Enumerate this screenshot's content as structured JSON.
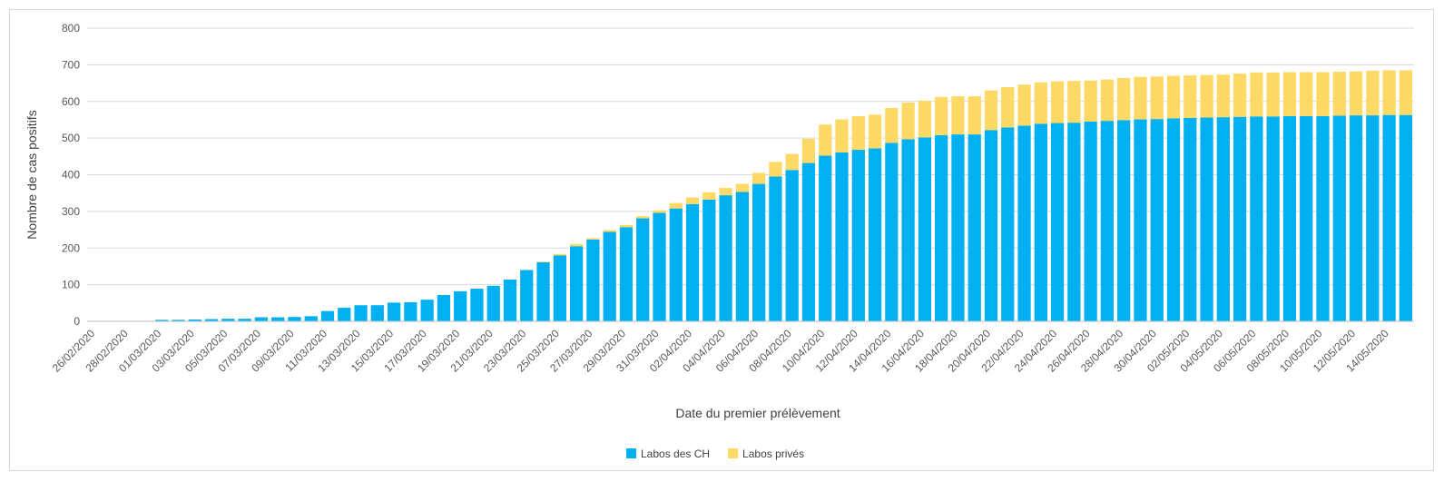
{
  "chart_data": {
    "type": "bar",
    "stacked": true,
    "title": "",
    "xlabel": "Date du premier prélèvement",
    "ylabel": "Nombre de cas positifs",
    "ylim": [
      0,
      800
    ],
    "yticks": [
      0,
      100,
      200,
      300,
      400,
      500,
      600,
      700,
      800
    ],
    "grid": true,
    "legend_position": "bottom-center",
    "tick_labels": [
      "26/02/2020",
      "28/02/2020",
      "01/03/2020",
      "03/03/2020",
      "05/03/2020",
      "07/03/2020",
      "09/03/2020",
      "11/03/2020",
      "13/03/2020",
      "15/03/2020",
      "17/03/2020",
      "19/03/2020",
      "21/03/2020",
      "23/03/2020",
      "25/03/2020",
      "27/03/2020",
      "29/03/2020",
      "31/03/2020",
      "02/04/2020",
      "04/04/2020",
      "06/04/2020",
      "08/04/2020",
      "10/04/2020",
      "12/04/2020",
      "14/04/2020",
      "16/04/2020",
      "18/04/2020",
      "20/04/2020",
      "22/04/2020",
      "24/04/2020",
      "26/04/2020",
      "28/04/2020",
      "30/04/2020",
      "02/05/2020",
      "04/05/2020",
      "06/05/2020",
      "08/05/2020",
      "10/05/2020",
      "12/05/2020",
      "14/05/2020"
    ],
    "categories": [
      "26/02/2020",
      "27/02/2020",
      "28/02/2020",
      "29/02/2020",
      "01/03/2020",
      "02/03/2020",
      "03/03/2020",
      "04/03/2020",
      "05/03/2020",
      "06/03/2020",
      "07/03/2020",
      "08/03/2020",
      "09/03/2020",
      "10/03/2020",
      "11/03/2020",
      "12/03/2020",
      "13/03/2020",
      "14/03/2020",
      "15/03/2020",
      "16/03/2020",
      "17/03/2020",
      "18/03/2020",
      "19/03/2020",
      "20/03/2020",
      "21/03/2020",
      "22/03/2020",
      "23/03/2020",
      "24/03/2020",
      "25/03/2020",
      "26/03/2020",
      "27/03/2020",
      "28/03/2020",
      "29/03/2020",
      "30/03/2020",
      "31/03/2020",
      "01/04/2020",
      "02/04/2020",
      "03/04/2020",
      "04/04/2020",
      "05/04/2020",
      "06/04/2020",
      "07/04/2020",
      "08/04/2020",
      "09/04/2020",
      "10/04/2020",
      "11/04/2020",
      "12/04/2020",
      "13/04/2020",
      "14/04/2020",
      "15/04/2020",
      "16/04/2020",
      "17/04/2020",
      "18/04/2020",
      "19/04/2020",
      "20/04/2020",
      "21/04/2020",
      "22/04/2020",
      "23/04/2020",
      "24/04/2020",
      "25/04/2020",
      "26/04/2020",
      "27/04/2020",
      "28/04/2020",
      "29/04/2020",
      "30/04/2020",
      "01/05/2020",
      "02/05/2020",
      "03/05/2020",
      "04/05/2020",
      "05/05/2020",
      "06/05/2020",
      "07/05/2020",
      "08/05/2020",
      "09/05/2020",
      "10/05/2020",
      "11/05/2020",
      "12/05/2020",
      "13/05/2020",
      "14/05/2020",
      "15/05/2020"
    ],
    "series": [
      {
        "name": "Labos des CH",
        "color": "#00b0f0",
        "values": [
          1,
          1,
          1,
          1,
          4,
          4,
          5,
          6,
          7,
          7,
          11,
          11,
          12,
          14,
          28,
          37,
          44,
          44,
          51,
          52,
          59,
          72,
          82,
          89,
          97,
          114,
          140,
          161,
          180,
          205,
          223,
          244,
          257,
          281,
          296,
          308,
          320,
          332,
          344,
          353,
          375,
          395,
          413,
          432,
          452,
          461,
          468,
          472,
          487,
          497,
          502,
          508,
          510,
          510,
          522,
          529,
          534,
          539,
          541,
          542,
          545,
          547,
          549,
          551,
          552,
          554,
          555,
          556,
          557,
          558,
          559,
          559,
          560,
          560,
          560,
          561,
          562,
          562,
          563,
          563
        ]
      },
      {
        "name": "Labos privés",
        "color": "#ffd966",
        "values": [
          0,
          0,
          0,
          0,
          0,
          0,
          0,
          0,
          0,
          0,
          0,
          0,
          0,
          0,
          0,
          0,
          0,
          0,
          0,
          0,
          0,
          0,
          0,
          0,
          0,
          0,
          0,
          2,
          4,
          6,
          4,
          5,
          6,
          6,
          7,
          15,
          18,
          20,
          20,
          22,
          30,
          40,
          44,
          66,
          85,
          90,
          92,
          92,
          95,
          100,
          100,
          104,
          104,
          104,
          108,
          110,
          112,
          113,
          114,
          114,
          112,
          113,
          115,
          116,
          116,
          116,
          116,
          116,
          116,
          118,
          120,
          120,
          120,
          120,
          120,
          120,
          120,
          122,
          122,
          122
        ]
      }
    ]
  }
}
